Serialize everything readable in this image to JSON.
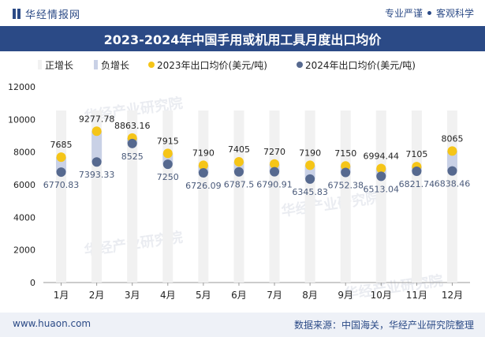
{
  "header": {
    "brand": "华经情报网",
    "tagline_left": "专业严谨",
    "tagline_right": "客观科学"
  },
  "footer": {
    "url": "www.huaon.com",
    "source": "数据来源：中国海关，华经产业研究院整理"
  },
  "watermark": {
    "cn": "华经产业研究院",
    "url": "www.huaon.com"
  },
  "colors": {
    "title_bg": "#2b4a86",
    "pos_bar": "#f1f1f1",
    "neg_bar": "#c9d1e6",
    "dot_2023": "#f5c518",
    "dot_2024": "#56698f"
  },
  "chart_data": {
    "type": "line",
    "title": "2023-2024年中国手用或机用工具月度出口均价",
    "xlabel": "",
    "ylabel": "",
    "ylim": [
      0,
      12000
    ],
    "yticks": [
      0,
      2000,
      4000,
      6000,
      8000,
      10000,
      12000
    ],
    "legend_position": "top",
    "categories": [
      "1月",
      "2月",
      "3月",
      "4月",
      "5月",
      "6月",
      "7月",
      "8月",
      "9月",
      "10月",
      "11月",
      "12月"
    ],
    "series": [
      {
        "name": "2023年出口均价(美元/吨)",
        "values": [
          7685,
          9277.78,
          8863.16,
          7915,
          7190,
          7405,
          7270,
          7190,
          7150,
          6994.44,
          7105,
          8065
        ],
        "labels": [
          "7685",
          "9277.78",
          "8863.16",
          "7915",
          "7190",
          "7405",
          "7270",
          "7190",
          "7150",
          "6994.44",
          "7105",
          "8065"
        ]
      },
      {
        "name": "2024年出口均价(美元/吨)",
        "values": [
          6770.83,
          7393.33,
          8525,
          7250,
          6726.09,
          6787.5,
          6790.91,
          6345.83,
          6752.38,
          6513.04,
          6821.74,
          6838.46
        ],
        "labels": [
          "6770.83",
          "7393.33",
          "8525",
          "7250",
          "6726.09",
          "6787.5",
          "6790.91",
          "6345.83",
          "6752.38",
          "6513.04",
          "6821.74",
          "6838.46"
        ]
      }
    ],
    "legend_bars": [
      {
        "name": "正增长"
      },
      {
        "name": "负增长"
      }
    ]
  }
}
